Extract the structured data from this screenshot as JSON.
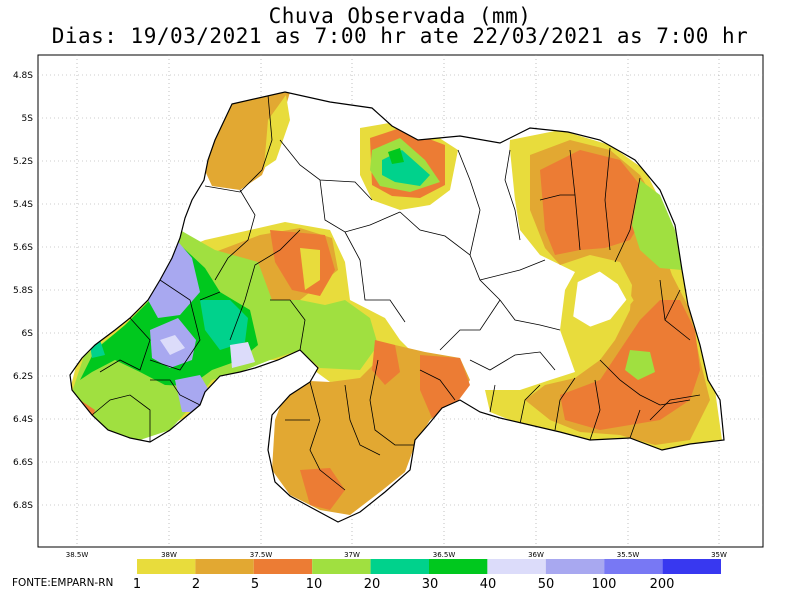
{
  "title": {
    "line1": "Chuva Observada (mm)",
    "line2": "Dias: 19/03/2021 as 7:00 hr ate 22/03/2021 as 7:00 hr"
  },
  "axes": {
    "y_ticks": [
      "4.8S",
      "5S",
      "5.2S",
      "5.4S",
      "5.6S",
      "5.8S",
      "6S",
      "6.2S",
      "6.4S",
      "6.6S",
      "6.8S"
    ],
    "x_ticks": [
      "38.5W",
      "38W",
      "37.5W",
      "37W",
      "36.5W",
      "36W",
      "35.5W",
      "35W"
    ]
  },
  "legend": {
    "labels": [
      "1",
      "2",
      "5",
      "10",
      "20",
      "30",
      "40",
      "50",
      "100",
      "200"
    ],
    "colors": [
      "#e8dc3c",
      "#e2a832",
      "#ec7c34",
      "#a0e040",
      "#00d28c",
      "#00c81e",
      "#dcdcfa",
      "#a8a8f0",
      "#7878f4",
      "#3838f0"
    ]
  },
  "source": "FONTE:EMPARN-RN"
}
